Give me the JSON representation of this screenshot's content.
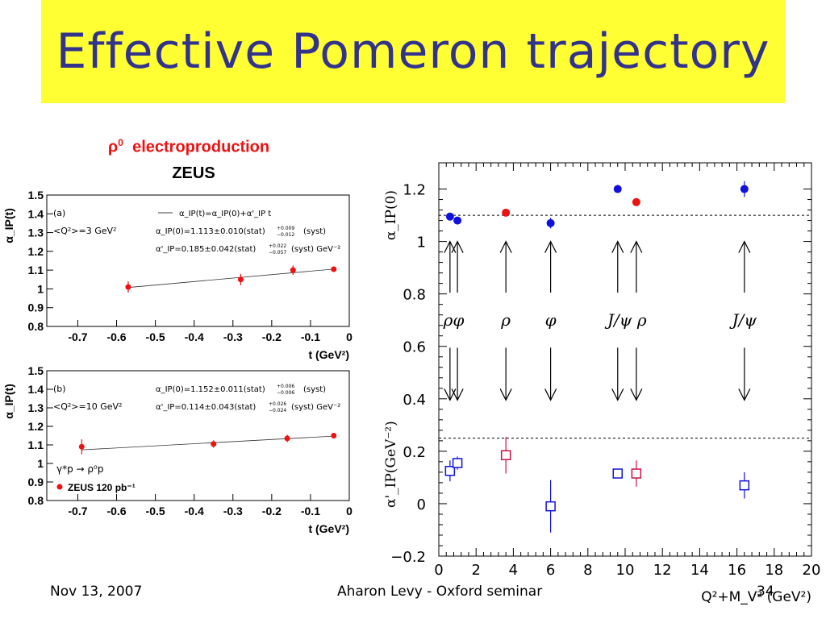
{
  "slide": {
    "title": "Effective Pomeron trajectory",
    "subtitle": "ρ",
    "subtitle_sup": "0",
    "subtitle_rest": "electroproduction",
    "experiment": "ZEUS",
    "footer_date": "Nov 13, 2007",
    "footer_speaker": "Aharon Levy - Oxford seminar",
    "footer_page": "34"
  },
  "colors": {
    "banner": "#ffff33",
    "title": "#33338c",
    "red": "#ee1111",
    "blue": "#1111dd",
    "crimson": "#cc1144"
  },
  "chart_data": [
    {
      "type": "scatter",
      "panel_label": "(a)",
      "condition": "<Q²>=3 GeV²",
      "fit_formula": "α_IP(t)=α_IP(0)+α'_IP t",
      "fit_intercept": "α_IP(0)=1.113±0.010(stat)",
      "fit_intercept_syst": "(syst)",
      "fit_intercept_err_up": "+0.009",
      "fit_intercept_err_down": "−0.012",
      "fit_slope": "α'_IP=0.185±0.042(stat)",
      "fit_slope_syst": "(syst) GeV⁻²",
      "fit_slope_err_up": "+0.022",
      "fit_slope_err_down": "−0.057",
      "ylabel": "α_IP(t)",
      "xlabel": "t (GeV²)",
      "xlim": [
        -0.78,
        0
      ],
      "ylim": [
        0.8,
        1.5
      ],
      "xticks": [
        -0.7,
        -0.6,
        -0.5,
        -0.4,
        -0.3,
        -0.2,
        -0.1,
        0
      ],
      "xtick_labels": [
        "-0.7",
        "-0.6",
        "-0.5",
        "-0.4",
        "-0.3",
        "-0.2",
        "-0.1",
        "0"
      ],
      "yticks": [
        0.8,
        0.9,
        1.0,
        1.1,
        1.2,
        1.3,
        1.4,
        1.5
      ],
      "ytick_labels": [
        "0.8",
        "0.9",
        "1",
        "1.1",
        "1.2",
        "1.3",
        "1.4",
        "1.5"
      ],
      "points": [
        {
          "x": -0.57,
          "y": 1.01,
          "err": 0.03
        },
        {
          "x": -0.28,
          "y": 1.05,
          "err": 0.03
        },
        {
          "x": -0.145,
          "y": 1.1,
          "err": 0.025
        },
        {
          "x": -0.04,
          "y": 1.105,
          "err": 0.01
        }
      ],
      "fit_line": {
        "intercept": 1.113,
        "slope": 0.185,
        "x_range": [
          -0.57,
          -0.04
        ]
      }
    },
    {
      "type": "scatter",
      "panel_label": "(b)",
      "condition": "<Q²>=10 GeV²",
      "fit_intercept": "α_IP(0)=1.152±0.011(stat)",
      "fit_intercept_syst": "(syst)",
      "fit_intercept_err_up": "+0.006",
      "fit_intercept_err_down": "−0.006",
      "fit_slope": "α'_IP=0.114±0.043(stat)",
      "fit_slope_syst": "(syst) GeV⁻²",
      "fit_slope_err_up": "+0.026",
      "fit_slope_err_down": "−0.024",
      "process": "γ*p → ρ⁰p",
      "legend_entry": "ZEUS 120 pb⁻¹",
      "ylabel": "α_IP(t)",
      "xlabel": "t (GeV²)",
      "xlim": [
        -0.78,
        0
      ],
      "ylim": [
        0.8,
        1.5
      ],
      "xticks": [
        -0.7,
        -0.6,
        -0.5,
        -0.4,
        -0.3,
        -0.2,
        -0.1,
        0
      ],
      "xtick_labels": [
        "-0.7",
        "-0.6",
        "-0.5",
        "-0.4",
        "-0.3",
        "-0.2",
        "-0.1",
        "0"
      ],
      "yticks": [
        0.8,
        0.9,
        1.0,
        1.1,
        1.2,
        1.3,
        1.4,
        1.5
      ],
      "ytick_labels": [
        "0.8",
        "0.9",
        "1",
        "1.1",
        "1.2",
        "1.3",
        "1.4",
        "1.5"
      ],
      "points": [
        {
          "x": -0.69,
          "y": 1.09,
          "err": 0.04
        },
        {
          "x": -0.35,
          "y": 1.105,
          "err": 0.02
        },
        {
          "x": -0.16,
          "y": 1.135,
          "err": 0.02
        },
        {
          "x": -0.04,
          "y": 1.15,
          "err": 0.01
        }
      ],
      "fit_line": {
        "intercept": 1.152,
        "slope": 0.114,
        "x_range": [
          -0.69,
          -0.04
        ]
      }
    },
    {
      "type": "scatter",
      "xlabel": "Q²+M_V² (GeV²)",
      "ylabel_top": "α_IP(0)",
      "ylabel_bottom": "α'_IP(GeV⁻²)",
      "xlim": [
        0,
        20
      ],
      "ylim": [
        -0.2,
        1.3
      ],
      "xticks": [
        0,
        2,
        4,
        6,
        8,
        10,
        12,
        14,
        16,
        18,
        20
      ],
      "xtick_labels": [
        "0",
        "2",
        "4",
        "6",
        "8",
        "10",
        "12",
        "14",
        "16",
        "18",
        "20"
      ],
      "yticks": [
        -0.2,
        0,
        0.2,
        0.4,
        0.6,
        0.8,
        1.0,
        1.2
      ],
      "ytick_labels": [
        "−0.2",
        "0",
        "0.2",
        "0.4",
        "0.6",
        "0.8",
        "1",
        "1.2"
      ],
      "reference_lines": [
        1.1,
        0.25
      ],
      "intercept_points": [
        {
          "x": 0.6,
          "y": 1.095,
          "err": 0.01,
          "color": "blue"
        },
        {
          "x": 1.0,
          "y": 1.08,
          "err": 0.01,
          "color": "blue"
        },
        {
          "x": 3.6,
          "y": 1.11,
          "err": 0.01,
          "color": "red"
        },
        {
          "x": 6.0,
          "y": 1.07,
          "err": 0.02,
          "color": "blue"
        },
        {
          "x": 9.6,
          "y": 1.2,
          "err": 0.01,
          "color": "blue"
        },
        {
          "x": 10.6,
          "y": 1.15,
          "err": 0.01,
          "color": "red"
        },
        {
          "x": 16.4,
          "y": 1.2,
          "err": 0.03,
          "color": "blue"
        }
      ],
      "slope_points": [
        {
          "x": 0.6,
          "y": 0.125,
          "err": 0.04,
          "color": "blue"
        },
        {
          "x": 1.0,
          "y": 0.155,
          "err": 0.025,
          "color": "blue"
        },
        {
          "x": 3.6,
          "y": 0.185,
          "err": 0.07,
          "color": "crimson"
        },
        {
          "x": 6.0,
          "y": -0.01,
          "err": 0.1,
          "color": "blue"
        },
        {
          "x": 9.6,
          "y": 0.115,
          "err": 0.01,
          "color": "blue"
        },
        {
          "x": 10.6,
          "y": 0.115,
          "err": 0.05,
          "color": "crimson"
        },
        {
          "x": 16.4,
          "y": 0.07,
          "err": 0.05,
          "color": "blue"
        }
      ],
      "arrow_groups": [
        {
          "label": "ρφ",
          "xs": [
            0.6,
            1.0
          ]
        },
        {
          "label": "ρ",
          "xs": [
            3.6
          ]
        },
        {
          "label": "φ",
          "xs": [
            6.0
          ]
        },
        {
          "label": "J/ψ ρ",
          "xs": [
            9.6,
            10.6
          ]
        },
        {
          "label": "J/ψ",
          "xs": [
            16.4
          ]
        }
      ]
    }
  ]
}
